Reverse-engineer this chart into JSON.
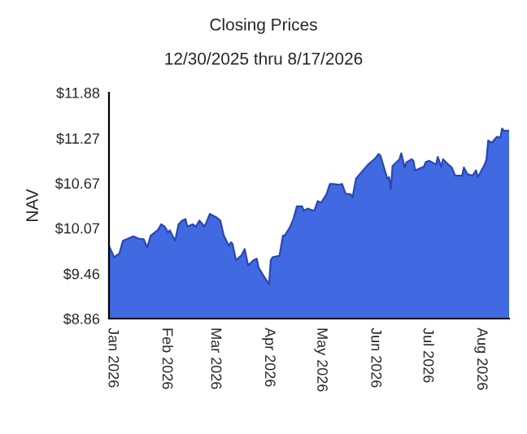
{
  "chart_data": {
    "type": "area",
    "title": "Closing Prices",
    "subtitle": "12/30/2025 thru 8/17/2026",
    "ylabel": "NAV",
    "x": [
      "2025-12-30",
      "2026-01-02",
      "2026-01-05",
      "2026-01-07",
      "2026-01-09",
      "2026-01-13",
      "2026-01-16",
      "2026-01-19",
      "2026-01-21",
      "2026-01-23",
      "2026-01-27",
      "2026-01-29",
      "2026-01-31",
      "2026-02-02",
      "2026-02-03",
      "2026-02-06",
      "2026-02-08",
      "2026-02-10",
      "2026-02-12",
      "2026-02-13",
      "2026-02-16",
      "2026-02-18",
      "2026-02-20",
      "2026-02-23",
      "2026-02-26",
      "2026-03-02",
      "2026-03-04",
      "2026-03-06",
      "2026-03-09",
      "2026-03-10",
      "2026-03-11",
      "2026-03-13",
      "2026-03-16",
      "2026-03-18",
      "2026-03-20",
      "2026-03-23",
      "2026-03-25",
      "2026-03-26",
      "2026-03-30",
      "2026-04-01",
      "2026-04-02",
      "2026-04-03",
      "2026-04-07",
      "2026-04-09",
      "2026-04-10",
      "2026-04-13",
      "2026-04-15",
      "2026-04-17",
      "2026-04-20",
      "2026-04-21",
      "2026-04-23",
      "2026-04-27",
      "2026-04-29",
      "2026-05-01",
      "2026-05-04",
      "2026-05-06",
      "2026-05-08",
      "2026-05-11",
      "2026-05-13",
      "2026-05-15",
      "2026-05-18",
      "2026-05-19",
      "2026-05-21",
      "2026-05-25",
      "2026-05-28",
      "2026-06-01",
      "2026-06-03",
      "2026-06-04",
      "2026-06-08",
      "2026-06-09",
      "2026-06-10",
      "2026-06-11",
      "2026-06-15",
      "2026-06-16",
      "2026-06-18",
      "2026-06-19",
      "2026-06-22",
      "2026-06-23",
      "2026-06-24",
      "2026-06-29",
      "2026-06-30",
      "2026-07-02",
      "2026-07-06",
      "2026-07-07",
      "2026-07-09",
      "2026-07-10",
      "2026-07-13",
      "2026-07-15",
      "2026-07-17",
      "2026-07-21",
      "2026-07-22",
      "2026-07-24",
      "2026-07-27",
      "2026-07-29",
      "2026-07-30",
      "2026-08-03",
      "2026-08-04",
      "2026-08-05",
      "2026-08-07",
      "2026-08-10",
      "2026-08-12",
      "2026-08-13",
      "2026-08-14",
      "2026-08-17"
    ],
    "series": [
      {
        "color": "#4169e1",
        "values": [
          9.83,
          9.68,
          9.73,
          9.9,
          9.92,
          9.96,
          9.93,
          9.92,
          9.81,
          9.97,
          10.04,
          10.12,
          10.09,
          10.01,
          10.04,
          9.9,
          10.12,
          10.17,
          10.19,
          10.09,
          10.12,
          10.09,
          10.17,
          10.09,
          10.26,
          10.21,
          10.17,
          9.97,
          9.83,
          9.88,
          9.86,
          9.64,
          9.7,
          9.79,
          9.57,
          9.64,
          9.66,
          9.54,
          9.39,
          9.32,
          9.64,
          9.68,
          9.7,
          9.97,
          9.97,
          10.08,
          10.19,
          10.36,
          10.36,
          10.3,
          10.33,
          10.3,
          10.43,
          10.41,
          10.52,
          10.66,
          10.66,
          10.65,
          10.66,
          10.53,
          10.52,
          10.48,
          10.73,
          10.84,
          10.92,
          11.0,
          11.06,
          11.04,
          10.73,
          10.75,
          10.59,
          10.9,
          10.99,
          11.07,
          10.88,
          10.95,
          10.99,
          10.97,
          10.84,
          10.89,
          10.95,
          10.97,
          10.92,
          11.02,
          10.89,
          10.99,
          10.92,
          10.88,
          10.77,
          10.77,
          10.88,
          10.79,
          10.77,
          10.84,
          10.75,
          10.92,
          10.99,
          11.24,
          11.21,
          11.29,
          11.28,
          11.4,
          11.37,
          11.37
        ]
      }
    ],
    "xlim": [
      "2025-12-30",
      "2026-08-17"
    ],
    "xticks": [
      {
        "value": "2026-01-01",
        "label": "Jan 2026"
      },
      {
        "value": "2026-02-01",
        "label": "Feb 2026"
      },
      {
        "value": "2026-03-01",
        "label": "Mar 2026"
      },
      {
        "value": "2026-04-01",
        "label": "Apr 2026"
      },
      {
        "value": "2026-05-01",
        "label": "May 2026"
      },
      {
        "value": "2026-06-01",
        "label": "Jun 2026"
      },
      {
        "value": "2026-07-01",
        "label": "Jul 2026"
      },
      {
        "value": "2026-08-01",
        "label": "Aug 2026"
      }
    ],
    "ylim": [
      8.86,
      11.88
    ],
    "yticks": [
      {
        "value": 8.86,
        "label": "$8.86"
      },
      {
        "value": 9.46,
        "label": "$9.46"
      },
      {
        "value": 10.07,
        "label": "$10.07"
      },
      {
        "value": 10.67,
        "label": "$10.67"
      },
      {
        "value": 11.27,
        "label": "$11.27"
      },
      {
        "value": 11.88,
        "label": "$11.88"
      }
    ],
    "grid": false
  }
}
